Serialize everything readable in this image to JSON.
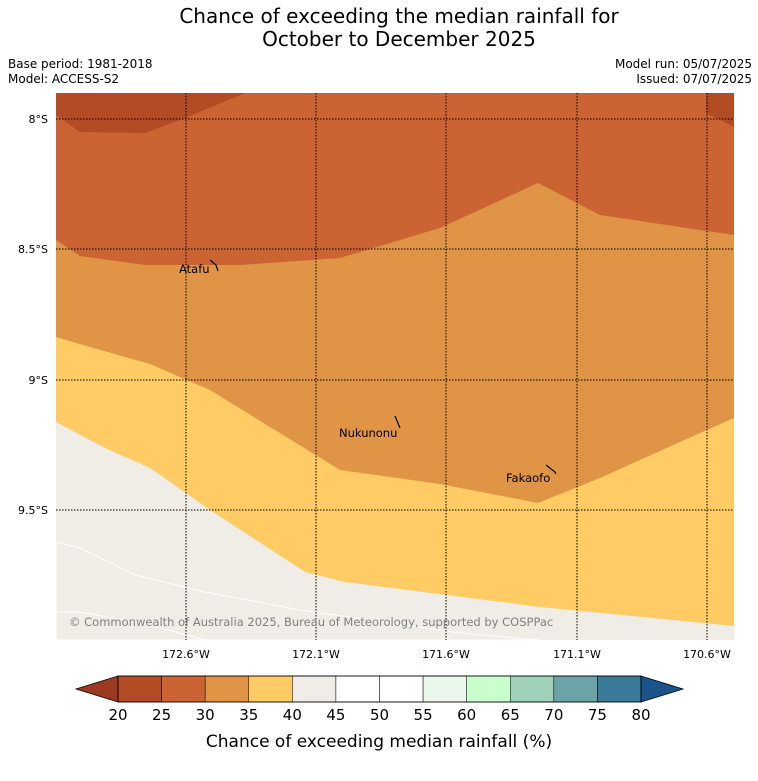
{
  "title_line1": "Chance of exceeding the median rainfall for",
  "title_line2": "October to December 2025",
  "meta": {
    "base_period": "Base period: 1981-2018",
    "model": "Model: ACCESS-S2",
    "model_run": "Model run: 05/07/2025",
    "issued": "Issued: 07/07/2025"
  },
  "lat_labels": [
    "8°S",
    "8.5°S",
    "9°S",
    "9.5°S"
  ],
  "lon_labels": [
    "172.6°W",
    "172.1°W",
    "171.6°W",
    "171.1°W",
    "170.6°W"
  ],
  "places": {
    "atafu": "Atafu",
    "nukunonu": "Nukunonu",
    "fakaofo": "Fakaofo"
  },
  "copyright": "© Commonwealth of Australia 2025, Bureau of Meteorology, supported by COSPPac",
  "colorbar": {
    "label": "Chance of exceeding median rainfall (%)",
    "ticks": [
      "20",
      "25",
      "30",
      "35",
      "40",
      "45",
      "50",
      "55",
      "60",
      "65",
      "70",
      "75",
      "80"
    ],
    "colors": [
      "#b34c24",
      "#cb6432",
      "#e09446",
      "#fecb64",
      "#f0ece6",
      "#ffffff",
      "#ffffff",
      "#ebf7eb",
      "#c9ffca",
      "#9fd1b9",
      "#6ba3a7",
      "#3b7b9a"
    ],
    "under_color": "#9b3a20",
    "over_color": "#1b548a"
  },
  "map_colors": {
    "c20": "#b34c24",
    "c25": "#cb6432",
    "c30": "#e09446",
    "c35": "#fecb64",
    "c40": "#f0ece6"
  }
}
